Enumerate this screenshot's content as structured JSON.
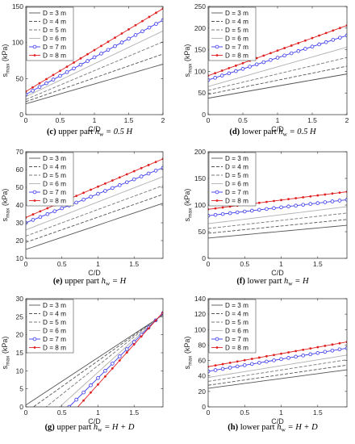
{
  "figure": {
    "legend_labels": [
      "D = 3 m",
      "D = 4 m",
      "D = 5 m",
      "D = 6 m",
      "D = 7 m",
      "D = 8 m"
    ],
    "colors": {
      "d3": "#555555",
      "d4": "#555555",
      "d5": "#777777",
      "d6": "#b0b0b0",
      "d7": "#3a3aee",
      "d8": "#e02020"
    }
  },
  "chart_data": [
    {
      "type": "line",
      "caption": {
        "letter": "(c)",
        "text": "upper part",
        "sym": "h",
        "sub": "w",
        "rhs": " = 0.5 H"
      },
      "xlabel": "C/D",
      "ylabel": "s",
      "ylabel_sub": "max",
      "ylabel_unit": "(kPa)",
      "xlim": [
        0,
        2
      ],
      "ylim": [
        0,
        150
      ],
      "xticks": [
        0,
        0.5,
        1,
        1.5,
        2
      ],
      "xtick_labels": [
        "0",
        "0.5",
        "1",
        "1.5",
        "2"
      ],
      "yticks": [
        0,
        50,
        100,
        150
      ],
      "ytick_labels": [
        "0",
        "50",
        "100",
        "150"
      ],
      "legend": "top-left",
      "x": [
        0,
        0.1,
        0.2,
        0.3,
        0.4,
        0.5,
        0.6,
        0.7,
        0.8,
        0.9,
        1.0,
        1.1,
        1.2,
        1.3,
        1.4,
        1.5,
        1.6,
        1.7,
        1.8,
        1.9,
        2.0
      ],
      "series": [
        {
          "name": "D = 3 m",
          "start": 15,
          "end": 70
        },
        {
          "name": "D = 4 m",
          "start": 18,
          "end": 84
        },
        {
          "name": "D = 5 m",
          "start": 21,
          "end": 101
        },
        {
          "name": "D = 6 m",
          "start": 25,
          "end": 116
        },
        {
          "name": "D = 7 m",
          "start": 28,
          "end": 131
        },
        {
          "name": "D = 8 m",
          "start": 32,
          "end": 147
        }
      ]
    },
    {
      "type": "line",
      "caption": {
        "letter": "(d)",
        "text": "lower part",
        "sym": "h",
        "sub": "w",
        "rhs": " = 0.5 H"
      },
      "xlabel": "C/D",
      "ylabel": "s",
      "ylabel_sub": "max",
      "ylabel_unit": "(kPa)",
      "xlim": [
        0,
        2
      ],
      "ylim": [
        0,
        250
      ],
      "xticks": [
        0,
        0.5,
        1,
        1.5,
        2
      ],
      "xtick_labels": [
        "0",
        "0.5",
        "1",
        "1.5",
        "2"
      ],
      "yticks": [
        0,
        50,
        100,
        150,
        200,
        250
      ],
      "ytick_labels": [
        "0",
        "50",
        "100",
        "150",
        "200",
        "250"
      ],
      "legend": "top-left",
      "x": [
        0,
        0.1,
        0.2,
        0.3,
        0.4,
        0.5,
        0.6,
        0.7,
        0.8,
        0.9,
        1.0,
        1.1,
        1.2,
        1.3,
        1.4,
        1.5,
        1.6,
        1.7,
        1.8,
        1.9,
        2.0
      ],
      "series": [
        {
          "name": "D = 3 m",
          "start": 38,
          "end": 94
        },
        {
          "name": "D = 4 m",
          "start": 47,
          "end": 112
        },
        {
          "name": "D = 5 m",
          "start": 56,
          "end": 132
        },
        {
          "name": "D = 6 m",
          "start": 65,
          "end": 156
        },
        {
          "name": "D = 7 m",
          "start": 80,
          "end": 183
        },
        {
          "name": "D = 8 m",
          "start": 90,
          "end": 206
        }
      ]
    },
    {
      "type": "line",
      "caption": {
        "letter": "(e)",
        "text": "upper part",
        "sym": "h",
        "sub": "w",
        "rhs": " = H"
      },
      "xlabel": "C/D",
      "ylabel": "s",
      "ylabel_sub": "max",
      "ylabel_unit": "(kPa)",
      "xlim": [
        0,
        1.9
      ],
      "ylim": [
        10,
        70
      ],
      "xticks": [
        0,
        0.5,
        1,
        1.5
      ],
      "xtick_labels": [
        "0",
        "0.5",
        "1",
        "1.5"
      ],
      "yticks": [
        10,
        20,
        30,
        40,
        50,
        60,
        70
      ],
      "ytick_labels": [
        "10",
        "20",
        "30",
        "40",
        "50",
        "60",
        "70"
      ],
      "legend": "top-left",
      "x": [
        0,
        0.1,
        0.2,
        0.3,
        0.4,
        0.5,
        0.6,
        0.7,
        0.8,
        0.9,
        1.0,
        1.1,
        1.2,
        1.3,
        1.4,
        1.5,
        1.6,
        1.7,
        1.8,
        1.9
      ],
      "series": [
        {
          "name": "D = 3 m",
          "start": 15,
          "end": 41
        },
        {
          "name": "D = 4 m",
          "start": 19,
          "end": 46
        },
        {
          "name": "D = 5 m",
          "start": 22.5,
          "end": 51
        },
        {
          "name": "D = 6 m",
          "start": 26,
          "end": 56
        },
        {
          "name": "D = 7 m",
          "start": 30,
          "end": 61
        },
        {
          "name": "D = 8 m",
          "start": 33,
          "end": 66
        }
      ]
    },
    {
      "type": "line",
      "caption": {
        "letter": "(f)",
        "text": "lower part",
        "sym": "h",
        "sub": "w",
        "rhs": " = H"
      },
      "xlabel": "C/D",
      "ylabel": "s",
      "ylabel_sub": "max",
      "ylabel_unit": "(kPa)",
      "xlim": [
        0,
        1.9
      ],
      "ylim": [
        0,
        200
      ],
      "xticks": [
        0,
        0.5,
        1,
        1.5
      ],
      "xtick_labels": [
        "0",
        "0.5",
        "1",
        "1.5"
      ],
      "yticks": [
        0,
        50,
        100,
        150,
        200
      ],
      "ytick_labels": [
        "0",
        "50",
        "100",
        "150",
        "200"
      ],
      "legend": "top-left",
      "x": [
        0,
        0.1,
        0.2,
        0.3,
        0.4,
        0.5,
        0.6,
        0.7,
        0.8,
        0.9,
        1.0,
        1.1,
        1.2,
        1.3,
        1.4,
        1.5,
        1.6,
        1.7,
        1.8,
        1.9
      ],
      "series": [
        {
          "name": "D = 3 m",
          "start": 38,
          "end": 62
        },
        {
          "name": "D = 4 m",
          "start": 47,
          "end": 73
        },
        {
          "name": "D = 5 m",
          "start": 56,
          "end": 85
        },
        {
          "name": "D = 6 m",
          "start": 65,
          "end": 97
        },
        {
          "name": "D = 7 m",
          "start": 80,
          "end": 110
        },
        {
          "name": "D = 8 m",
          "start": 92,
          "end": 125
        }
      ]
    },
    {
      "type": "line",
      "caption": {
        "letter": "(g)",
        "text": "upper part",
        "sym": "h",
        "sub": "w",
        "rhs": " = H + D"
      },
      "xlabel": "C/D",
      "ylabel": "s",
      "ylabel_sub": "max",
      "ylabel_unit": "(kPa)",
      "xlim": [
        0,
        1.9
      ],
      "ylim": [
        0,
        30
      ],
      "xticks": [
        0,
        0.5,
        1,
        1.5
      ],
      "xtick_labels": [
        "0",
        "0.5",
        "1",
        "1.5"
      ],
      "yticks": [
        0,
        5,
        10,
        15,
        20,
        25,
        30
      ],
      "ytick_labels": [
        "0",
        "5",
        "10",
        "15",
        "20",
        "25",
        "30"
      ],
      "legend": "top-left",
      "x": [
        0,
        0.1,
        0.2,
        0.3,
        0.4,
        0.5,
        0.6,
        0.7,
        0.8,
        0.9,
        1.0,
        1.1,
        1.2,
        1.3,
        1.4,
        1.5,
        1.6,
        1.7,
        1.8,
        1.9
      ],
      "series": [
        {
          "name": "D = 3 m",
          "start": 0.5,
          "end": 25.5
        },
        {
          "name": "D = 4 m",
          "start": -1.5,
          "end": 25.6
        },
        {
          "name": "D = 5 m",
          "start": -4.5,
          "end": 25.8
        },
        {
          "name": "D = 6 m",
          "start": -8.5,
          "end": 25.9
        },
        {
          "name": "D = 7 m",
          "start": -12.0,
          "end": 26.0
        },
        {
          "name": "D = 8 m",
          "start": -16.0,
          "end": 26.2
        }
      ]
    },
    {
      "type": "line",
      "caption": {
        "letter": "(h)",
        "text": "lower part",
        "sym": "h",
        "sub": "w",
        "rhs": " = H + D"
      },
      "xlabel": "C/D",
      "ylabel": "s",
      "ylabel_sub": "max",
      "ylabel_unit": "(kPa)",
      "xlim": [
        0,
        1.9
      ],
      "ylim": [
        0,
        140
      ],
      "xticks": [
        0,
        0.5,
        1,
        1.5
      ],
      "xtick_labels": [
        "0",
        "0.5",
        "1",
        "1.5"
      ],
      "yticks": [
        0,
        20,
        40,
        60,
        80,
        100,
        120,
        140
      ],
      "ytick_labels": [
        "0",
        "20",
        "40",
        "60",
        "80",
        "100",
        "120",
        "140"
      ],
      "legend": "top-left",
      "x": [
        0,
        0.1,
        0.2,
        0.3,
        0.4,
        0.5,
        0.6,
        0.7,
        0.8,
        0.9,
        1.0,
        1.1,
        1.2,
        1.3,
        1.4,
        1.5,
        1.6,
        1.7,
        1.8,
        1.9
      ],
      "series": [
        {
          "name": "D = 3 m",
          "start": 24,
          "end": 48
        },
        {
          "name": "D = 4 m",
          "start": 28,
          "end": 54
        },
        {
          "name": "D = 5 m",
          "start": 33,
          "end": 61
        },
        {
          "name": "D = 6 m",
          "start": 38,
          "end": 67
        },
        {
          "name": "D = 7 m",
          "start": 46,
          "end": 76
        },
        {
          "name": "D = 8 m",
          "start": 52,
          "end": 84
        }
      ]
    }
  ]
}
